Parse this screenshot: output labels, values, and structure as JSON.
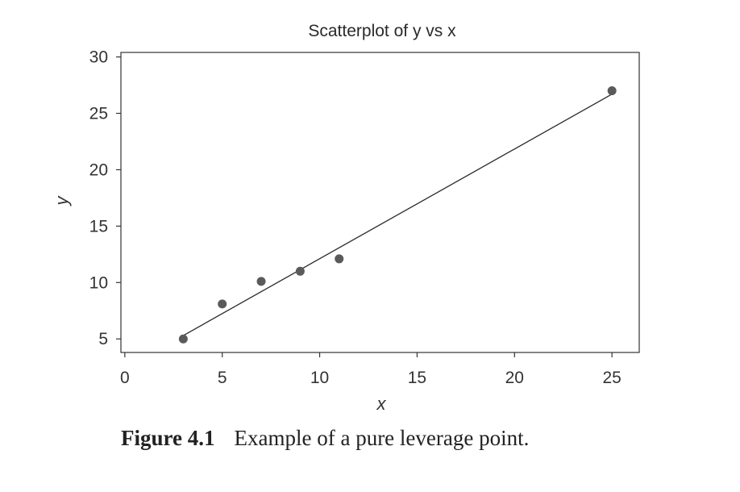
{
  "chart_data": {
    "type": "scatter",
    "title": "Scatterplot of y vs x",
    "xlabel": "x",
    "ylabel": "y",
    "xlim": [
      -0.2,
      26.4
    ],
    "ylim": [
      3.8,
      30.4
    ],
    "xticks": [
      0,
      5,
      10,
      15,
      20,
      25
    ],
    "yticks": [
      5,
      10,
      15,
      20,
      25,
      30
    ],
    "grid": false,
    "points": [
      {
        "x": 3,
        "y": 5
      },
      {
        "x": 5,
        "y": 8.1
      },
      {
        "x": 7,
        "y": 10.1
      },
      {
        "x": 9,
        "y": 11
      },
      {
        "x": 11,
        "y": 12.1
      },
      {
        "x": 25,
        "y": 27
      }
    ],
    "fit_line": {
      "x": [
        3,
        25
      ],
      "y": [
        5.3,
        26.7
      ]
    },
    "colors": {
      "points": "#5a5a5a",
      "line": "#2a2a2a",
      "frame": "#333333"
    }
  },
  "caption": {
    "label": "Figure 4.1",
    "text": "Example of a pure leverage point."
  }
}
